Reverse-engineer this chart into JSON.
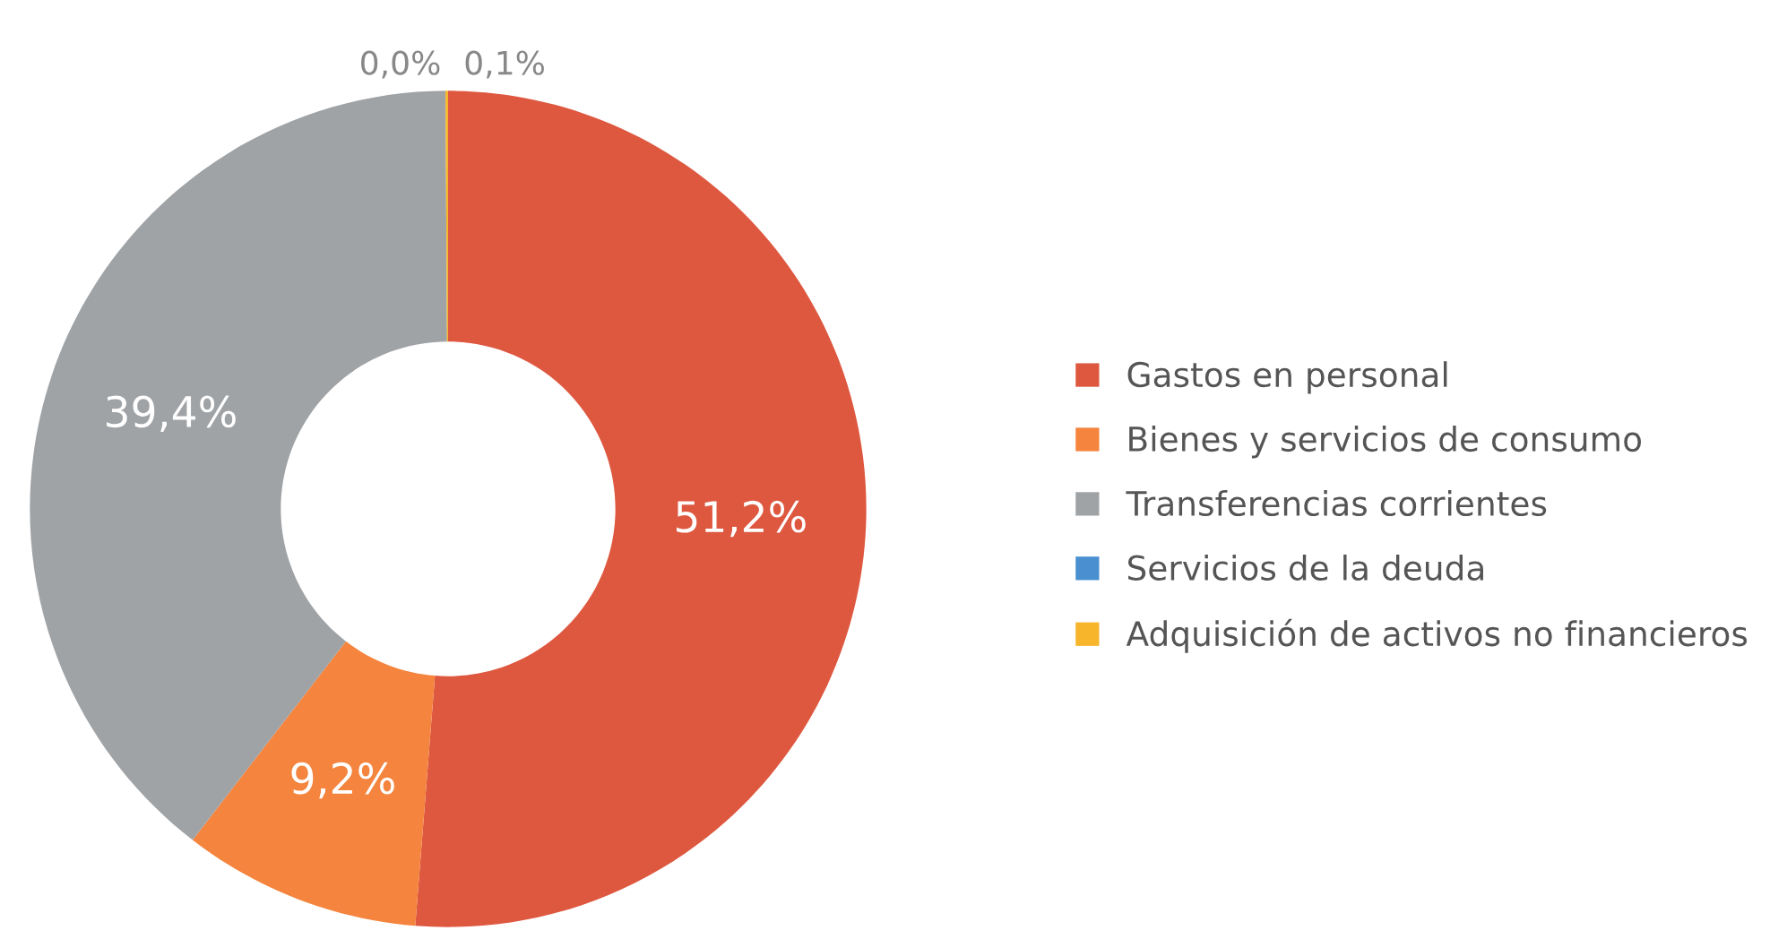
{
  "chart_data": {
    "type": "donut",
    "categories": [
      "Gastos en personal",
      "Bienes y servicios de consumo",
      "Transferencias corrientes",
      "Servicios de la deuda",
      "Adquisición de activos no financieros"
    ],
    "values": [
      51.2,
      9.2,
      39.4,
      0.0,
      0.1
    ],
    "colors": [
      "#de5840",
      "#f4843e",
      "#a0a3a6",
      "#4a90d0",
      "#f7b52c"
    ],
    "value_labels": [
      "51,2%",
      "9,2%",
      "39,4%",
      "0,0%",
      "0,1%"
    ],
    "legend": "right"
  }
}
